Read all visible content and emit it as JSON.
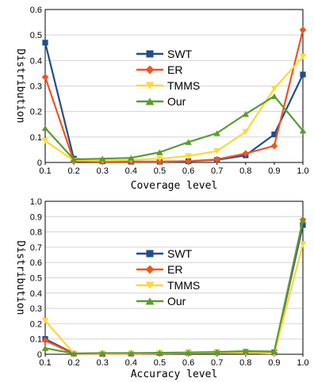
{
  "chart_data": [
    {
      "type": "line",
      "xlabel": "Coverage level",
      "ylabel": "Distribution",
      "x": [
        0.1,
        0.2,
        0.3,
        0.4,
        0.5,
        0.6,
        0.7,
        0.8,
        0.9,
        1.0
      ],
      "x_ticks": [
        "0.1",
        "0.2",
        "0.3",
        "0.4",
        "0.5",
        "0.6",
        "0.7",
        "0.8",
        "0.9",
        "1.0"
      ],
      "ylim": [
        0,
        0.6
      ],
      "y_ticks": [
        "0",
        "0.1",
        "0.2",
        "0.3",
        "0.4",
        "0.5",
        "0.6"
      ],
      "grid": "horizontal",
      "legend": "center",
      "series": [
        {
          "name": "SWT",
          "color": "#1f4e8c",
          "marker": "square",
          "values": [
            0.47,
            0.015,
            0.005,
            0.003,
            0.003,
            0.005,
            0.01,
            0.028,
            0.11,
            0.345
          ]
        },
        {
          "name": "ER",
          "color": "#f0541e",
          "marker": "diamond",
          "values": [
            0.335,
            0.005,
            0.003,
            0.003,
            0.003,
            0.005,
            0.012,
            0.035,
            0.065,
            0.52
          ]
        },
        {
          "name": "TMMS",
          "color": "#fdd835",
          "marker": "triangle-down",
          "values": [
            0.085,
            0.008,
            0.008,
            0.01,
            0.015,
            0.025,
            0.045,
            0.12,
            0.29,
            0.415
          ]
        },
        {
          "name": "Our",
          "color": "#5b9b2e",
          "marker": "triangle-up",
          "values": [
            0.135,
            0.012,
            0.015,
            0.018,
            0.04,
            0.08,
            0.115,
            0.19,
            0.26,
            0.125
          ]
        }
      ]
    },
    {
      "type": "line",
      "xlabel": "Accuracy level",
      "ylabel": "Distribution",
      "x": [
        0.1,
        0.2,
        0.3,
        0.4,
        0.5,
        0.6,
        0.7,
        0.8,
        0.9,
        1.0
      ],
      "x_ticks": [
        "0.1",
        "0.2",
        "0.3",
        "0.4",
        "0.5",
        "0.6",
        "0.7",
        "0.8",
        "0.9",
        "1.0"
      ],
      "ylim": [
        0,
        1.0
      ],
      "y_ticks": [
        "0",
        "0.1",
        "0.2",
        "0.3",
        "0.4",
        "0.5",
        "0.6",
        "0.7",
        "0.8",
        "0.9",
        "1.0"
      ],
      "grid": "horizontal",
      "legend": "center",
      "series": [
        {
          "name": "SWT",
          "color": "#1f4e8c",
          "marker": "square",
          "values": [
            0.1,
            0.005,
            0.003,
            0.005,
            0.008,
            0.01,
            0.012,
            0.015,
            0.012,
            0.845
          ]
        },
        {
          "name": "ER",
          "color": "#f0541e",
          "marker": "diamond",
          "values": [
            0.09,
            0.003,
            0.003,
            0.003,
            0.005,
            0.008,
            0.008,
            0.01,
            0.008,
            0.88
          ]
        },
        {
          "name": "TMMS",
          "color": "#fdd835",
          "marker": "triangle-down",
          "values": [
            0.22,
            0.005,
            0.005,
            0.005,
            0.008,
            0.008,
            0.01,
            0.01,
            0.005,
            0.72
          ]
        },
        {
          "name": "Our",
          "color": "#5b9b2e",
          "marker": "triangle-up",
          "values": [
            0.04,
            0.005,
            0.008,
            0.008,
            0.01,
            0.012,
            0.015,
            0.02,
            0.018,
            0.875
          ]
        }
      ]
    }
  ]
}
